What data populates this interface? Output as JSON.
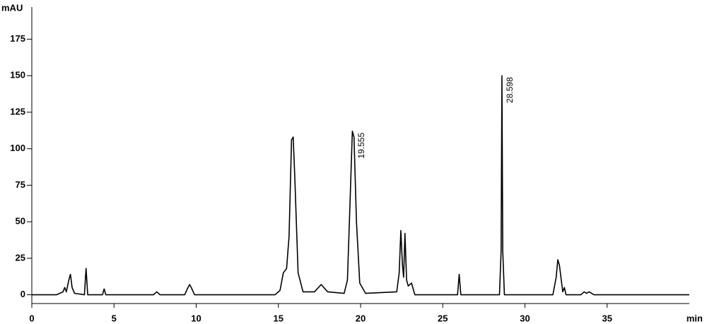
{
  "chart_data": {
    "type": "line",
    "y_label": "mAU",
    "x_label": "min",
    "x": [
      0,
      1.5,
      1.7,
      1.9,
      2.0,
      2.1,
      2.25,
      2.35,
      2.45,
      2.6,
      3.2,
      3.3,
      3.4,
      4.3,
      4.4,
      4.5,
      7.4,
      7.6,
      7.8,
      9.3,
      9.5,
      9.6,
      9.7,
      9.9,
      14.8,
      15.1,
      15.3,
      15.5,
      15.65,
      15.8,
      15.9,
      16.0,
      16.2,
      16.5,
      17.2,
      17.6,
      18.0,
      19.0,
      19.2,
      19.35,
      19.5,
      19.6,
      19.75,
      19.95,
      20.3,
      22.2,
      22.35,
      22.45,
      22.55,
      22.62,
      22.7,
      22.8,
      22.9,
      23.1,
      23.3,
      25.9,
      26.0,
      26.1,
      28.45,
      28.55,
      28.6,
      28.65,
      28.75,
      31.7,
      31.9,
      32.0,
      32.1,
      32.3,
      32.4,
      32.5,
      33.4,
      33.6,
      33.75,
      33.9,
      34.2,
      40
    ],
    "series": [
      {
        "color": "#000000",
        "values": [
          0,
          0,
          1,
          2,
          5,
          2,
          10,
          14,
          5,
          1,
          0,
          18,
          0,
          0,
          4,
          0,
          0,
          2,
          0,
          0,
          5,
          7,
          5,
          0,
          0,
          3,
          15,
          18,
          40,
          106,
          108,
          80,
          15,
          2,
          2,
          7,
          2,
          1,
          10,
          60,
          112,
          108,
          50,
          8,
          1,
          2,
          15,
          44,
          20,
          12,
          42,
          10,
          6,
          8,
          0,
          0,
          14,
          0,
          0,
          30,
          150,
          30,
          0,
          0,
          12,
          24,
          20,
          2,
          5,
          0,
          0,
          2,
          1,
          2,
          0,
          0
        ]
      }
    ],
    "annotations": [
      {
        "value": 19.555,
        "label": "19.555"
      },
      {
        "value": 28.598,
        "label": "28.598"
      }
    ],
    "xlim": [
      0,
      40
    ],
    "xticks": [
      0,
      5,
      10,
      15,
      20,
      25,
      30,
      35
    ],
    "ylim": [
      -6,
      197
    ],
    "yticks": [
      0,
      25,
      50,
      75,
      100,
      125,
      150,
      175
    ],
    "grid": false
  }
}
